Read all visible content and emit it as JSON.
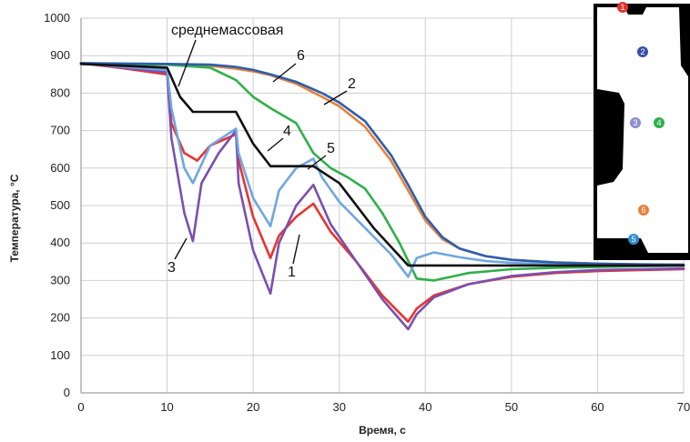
{
  "chart_data": {
    "type": "line",
    "xlabel": "Время, с",
    "ylabel": "Температура, °C",
    "xlim": [
      0,
      70
    ],
    "ylim": [
      0,
      1000
    ],
    "xticks": [
      0,
      10,
      20,
      30,
      40,
      50,
      60,
      70
    ],
    "yticks": [
      0,
      100,
      200,
      300,
      400,
      500,
      600,
      700,
      800,
      900,
      1000
    ],
    "grid": true,
    "series": [
      {
        "name": "1",
        "color": "#e8332e",
        "points": [
          [
            0,
            880
          ],
          [
            5,
            866
          ],
          [
            10,
            850
          ],
          [
            10.5,
            720
          ],
          [
            12,
            640
          ],
          [
            13.5,
            620
          ],
          [
            15,
            660
          ],
          [
            18,
            690
          ],
          [
            18.3,
            620
          ],
          [
            20,
            470
          ],
          [
            22,
            360
          ],
          [
            23,
            420
          ],
          [
            25,
            470
          ],
          [
            27,
            505
          ],
          [
            29,
            430
          ],
          [
            32,
            350
          ],
          [
            35,
            260
          ],
          [
            38,
            190
          ],
          [
            39,
            225
          ],
          [
            41,
            260
          ],
          [
            45,
            290
          ],
          [
            50,
            310
          ],
          [
            55,
            320
          ],
          [
            60,
            325
          ],
          [
            65,
            328
          ],
          [
            70,
            330
          ]
        ]
      },
      {
        "name": "2",
        "color": "#e8803a",
        "points": [
          [
            0,
            878
          ],
          [
            10,
            876
          ],
          [
            15,
            873
          ],
          [
            18,
            865
          ],
          [
            20,
            858
          ],
          [
            22,
            848
          ],
          [
            25,
            825
          ],
          [
            28,
            790
          ],
          [
            30,
            765
          ],
          [
            33,
            710
          ],
          [
            36,
            620
          ],
          [
            38,
            540
          ],
          [
            40,
            460
          ],
          [
            42,
            410
          ],
          [
            44,
            385
          ],
          [
            47,
            365
          ],
          [
            50,
            355
          ],
          [
            55,
            348
          ],
          [
            60,
            345
          ],
          [
            65,
            343
          ],
          [
            70,
            342
          ]
        ]
      },
      {
        "name": "3",
        "color": "#7b4fb0",
        "points": [
          [
            0,
            880
          ],
          [
            5,
            868
          ],
          [
            10,
            855
          ],
          [
            10.5,
            680
          ],
          [
            12,
            480
          ],
          [
            13,
            405
          ],
          [
            14,
            560
          ],
          [
            16,
            640
          ],
          [
            18,
            700
          ],
          [
            18.3,
            560
          ],
          [
            20,
            380
          ],
          [
            22,
            265
          ],
          [
            23,
            400
          ],
          [
            25,
            500
          ],
          [
            27,
            555
          ],
          [
            29,
            450
          ],
          [
            32,
            350
          ],
          [
            35,
            250
          ],
          [
            38,
            170
          ],
          [
            39,
            210
          ],
          [
            41,
            255
          ],
          [
            45,
            290
          ],
          [
            50,
            312
          ],
          [
            55,
            322
          ],
          [
            60,
            328
          ],
          [
            65,
            330
          ],
          [
            70,
            332
          ]
        ]
      },
      {
        "name": "4",
        "color": "#2fb04a",
        "points": [
          [
            0,
            878
          ],
          [
            10,
            876
          ],
          [
            15,
            868
          ],
          [
            18,
            835
          ],
          [
            20,
            790
          ],
          [
            22,
            760
          ],
          [
            25,
            720
          ],
          [
            27,
            640
          ],
          [
            29,
            600
          ],
          [
            31,
            575
          ],
          [
            33,
            545
          ],
          [
            35,
            480
          ],
          [
            37,
            400
          ],
          [
            39,
            305
          ],
          [
            41,
            300
          ],
          [
            45,
            320
          ],
          [
            50,
            330
          ],
          [
            55,
            334
          ],
          [
            60,
            336
          ],
          [
            65,
            338
          ],
          [
            70,
            340
          ]
        ]
      },
      {
        "name": "5",
        "color": "#6fa6df",
        "points": [
          [
            0,
            880
          ],
          [
            5,
            870
          ],
          [
            10,
            862
          ],
          [
            10.5,
            760
          ],
          [
            12,
            600
          ],
          [
            13,
            560
          ],
          [
            15,
            660
          ],
          [
            18,
            705
          ],
          [
            18.3,
            640
          ],
          [
            20,
            520
          ],
          [
            22,
            445
          ],
          [
            23,
            540
          ],
          [
            25,
            600
          ],
          [
            27,
            625
          ],
          [
            28,
            575
          ],
          [
            30,
            510
          ],
          [
            33,
            440
          ],
          [
            36,
            370
          ],
          [
            38,
            310
          ],
          [
            39,
            360
          ],
          [
            41,
            375
          ],
          [
            44,
            362
          ],
          [
            47,
            352
          ],
          [
            50,
            347
          ],
          [
            55,
            343
          ],
          [
            60,
            341
          ],
          [
            65,
            340
          ],
          [
            70,
            340
          ]
        ]
      },
      {
        "name": "6",
        "color": "#2c5fad",
        "points": [
          [
            0,
            880
          ],
          [
            10,
            878
          ],
          [
            15,
            876
          ],
          [
            18,
            870
          ],
          [
            20,
            862
          ],
          [
            22,
            850
          ],
          [
            25,
            830
          ],
          [
            28,
            800
          ],
          [
            30,
            775
          ],
          [
            33,
            725
          ],
          [
            36,
            635
          ],
          [
            38,
            555
          ],
          [
            40,
            470
          ],
          [
            42,
            415
          ],
          [
            44,
            385
          ],
          [
            47,
            365
          ],
          [
            50,
            355
          ],
          [
            55,
            348
          ],
          [
            60,
            345
          ],
          [
            65,
            343
          ],
          [
            70,
            342
          ]
        ]
      },
      {
        "name": "среднемассовая",
        "color": "#111111",
        "points": [
          [
            0,
            878
          ],
          [
            10,
            868
          ],
          [
            11.5,
            790
          ],
          [
            13,
            750
          ],
          [
            18,
            750
          ],
          [
            20,
            665
          ],
          [
            22,
            605
          ],
          [
            27,
            605
          ],
          [
            30,
            560
          ],
          [
            34,
            440
          ],
          [
            38,
            340
          ],
          [
            45,
            340
          ],
          [
            50,
            340
          ],
          [
            60,
            340
          ],
          [
            70,
            340
          ]
        ]
      }
    ],
    "annotations": [
      {
        "text": "среднемассовая",
        "series": "среднемассовая"
      },
      {
        "text": "6",
        "series": "6"
      },
      {
        "text": "2",
        "series": "2"
      },
      {
        "text": "4",
        "series": "4"
      },
      {
        "text": "5",
        "series": "5"
      },
      {
        "text": "3",
        "series": "3"
      },
      {
        "text": "1",
        "series": "1"
      }
    ],
    "inset": {
      "markers": [
        {
          "label": "1",
          "color": "#e8332e"
        },
        {
          "label": "2",
          "color": "#3a4fa8"
        },
        {
          "label": "3",
          "color": "#8c8fd0"
        },
        {
          "label": "4",
          "color": "#2fb04a"
        },
        {
          "label": "5",
          "color": "#2c8fd0"
        },
        {
          "label": "6",
          "color": "#e8803a"
        }
      ]
    }
  }
}
